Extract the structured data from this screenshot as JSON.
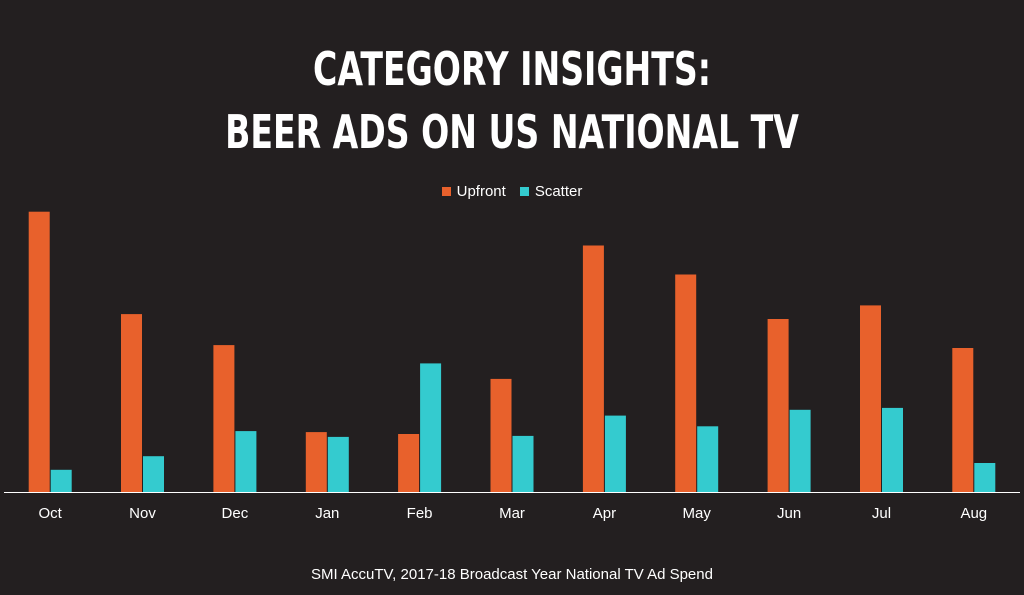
{
  "title_lines": [
    "CATEGORY INSIGHTS:",
    "BEER ADS ON US NATIONAL TV"
  ],
  "source": "SMI AccuTV, 2017-18 Broadcast Year National TV Ad Spend",
  "colors": {
    "background": "#231f20",
    "upfront": "#e8612c",
    "scatter": "#34cbcf",
    "axis": "#ffffff",
    "text": "#ffffff"
  },
  "chart_data": {
    "type": "bar",
    "categories": [
      "Oct",
      "Nov",
      "Dec",
      "Jan",
      "Feb",
      "Mar",
      "Apr",
      "May",
      "Jun",
      "Jul",
      "Aug"
    ],
    "series": [
      {
        "name": "Upfront",
        "values": [
          290,
          184,
          152,
          62,
          60,
          117,
          255,
          225,
          179,
          193,
          149
        ]
      },
      {
        "name": "Scatter",
        "values": [
          23,
          37,
          63,
          57,
          133,
          58,
          79,
          68,
          85,
          87,
          30
        ]
      }
    ],
    "ylim": [
      0,
      300
    ],
    "legend_position": "top-center",
    "grid": false
  }
}
